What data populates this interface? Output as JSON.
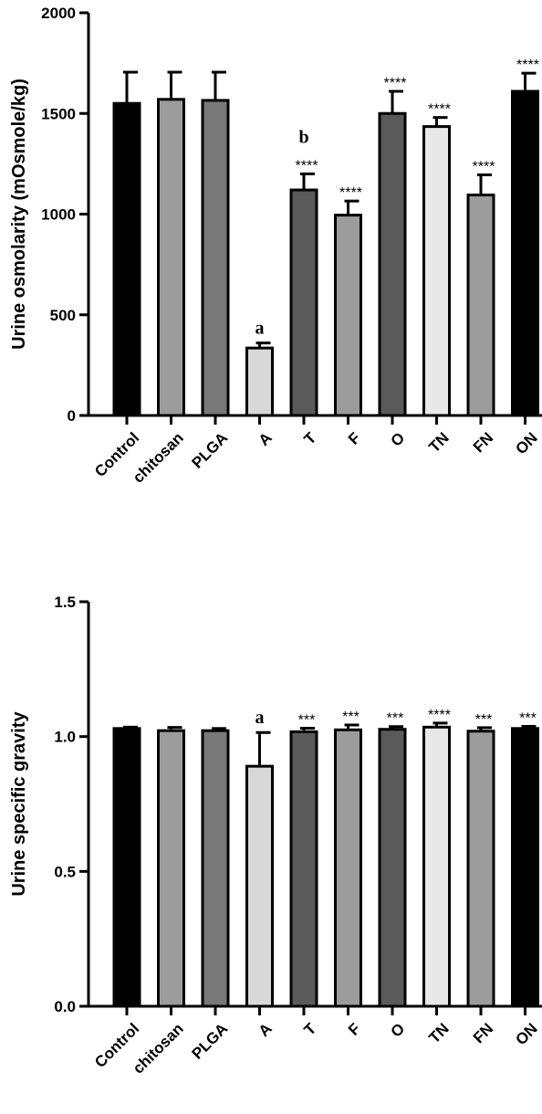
{
  "chart_data": [
    {
      "type": "bar",
      "ylabel": "Urine osmolarity (mOsmole/kg)",
      "xlabel": "",
      "ylim": [
        0,
        2000
      ],
      "yticks": [
        0,
        500,
        1000,
        1500,
        2000
      ],
      "categories": [
        "Control",
        "chitosan",
        "PLGA",
        "A",
        "T",
        "F",
        "O",
        "TN",
        "FN",
        "ON"
      ],
      "values": [
        1550,
        1570,
        1565,
        335,
        1120,
        995,
        1500,
        1435,
        1095,
        1610
      ],
      "errors": [
        155,
        135,
        140,
        25,
        80,
        70,
        110,
        45,
        100,
        90
      ],
      "colors": [
        "#000000",
        "#9c9c9c",
        "#787878",
        "#d8d8d8",
        "#5a5a5a",
        "#9c9c9c",
        "#5a5a5a",
        "#e8e8e8",
        "#9c9c9c",
        "#000000"
      ],
      "star_annotations": [
        "",
        "",
        "",
        "",
        "****",
        "****",
        "****",
        "****",
        "****",
        "****"
      ],
      "letter_annotations": [
        "",
        "",
        "",
        "a",
        "b",
        "",
        "",
        "",
        "",
        ""
      ],
      "grid": false
    },
    {
      "type": "bar",
      "ylabel": "Urine specific gravity",
      "xlabel": "",
      "ylim": [
        0.0,
        1.5
      ],
      "yticks": [
        "0.0",
        "0.5",
        "1.0",
        "1.5"
      ],
      "categories": [
        "Control",
        "chitosan",
        "PLGA",
        "A",
        "T",
        "F",
        "O",
        "TN",
        "FN",
        "ON"
      ],
      "values": [
        1.03,
        1.022,
        1.022,
        0.89,
        1.018,
        1.025,
        1.027,
        1.035,
        1.02,
        1.03
      ],
      "errors": [
        0.005,
        0.012,
        0.008,
        0.125,
        0.013,
        0.018,
        0.01,
        0.015,
        0.013,
        0.008
      ],
      "colors": [
        "#000000",
        "#9c9c9c",
        "#787878",
        "#d8d8d8",
        "#5a5a5a",
        "#9c9c9c",
        "#5a5a5a",
        "#e8e8e8",
        "#9c9c9c",
        "#000000"
      ],
      "star_annotations": [
        "",
        "",
        "",
        "",
        "***",
        "***",
        "***",
        "****",
        "***",
        "***"
      ],
      "letter_annotations": [
        "",
        "",
        "",
        "a",
        "",
        "",
        "",
        "",
        "",
        ""
      ],
      "grid": false
    }
  ]
}
